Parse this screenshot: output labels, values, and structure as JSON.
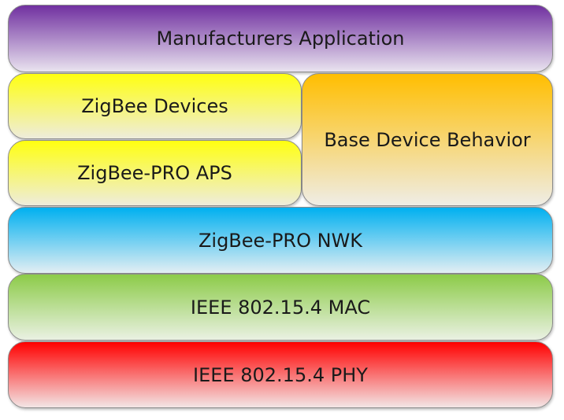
{
  "layers": {
    "manufacturers_application": {
      "label": "Manufacturers Application",
      "color": "#7030a0"
    },
    "zigbee_devices": {
      "label": "ZigBee Devices",
      "color": "#ffff00"
    },
    "zigbee_pro_aps": {
      "label": "ZigBee-PRO APS",
      "color": "#ffff00"
    },
    "base_device_behavior": {
      "label": "Base Device Behavior",
      "color": "#ffc000"
    },
    "zigbee_pro_nwk": {
      "label": "ZigBee-PRO NWK",
      "color": "#00b0f0"
    },
    "ieee_mac": {
      "label": "IEEE 802.15.4 MAC",
      "color": "#92d050"
    },
    "ieee_phy": {
      "label": "IEEE 802.15.4 PHY",
      "color": "#ff0000"
    }
  }
}
